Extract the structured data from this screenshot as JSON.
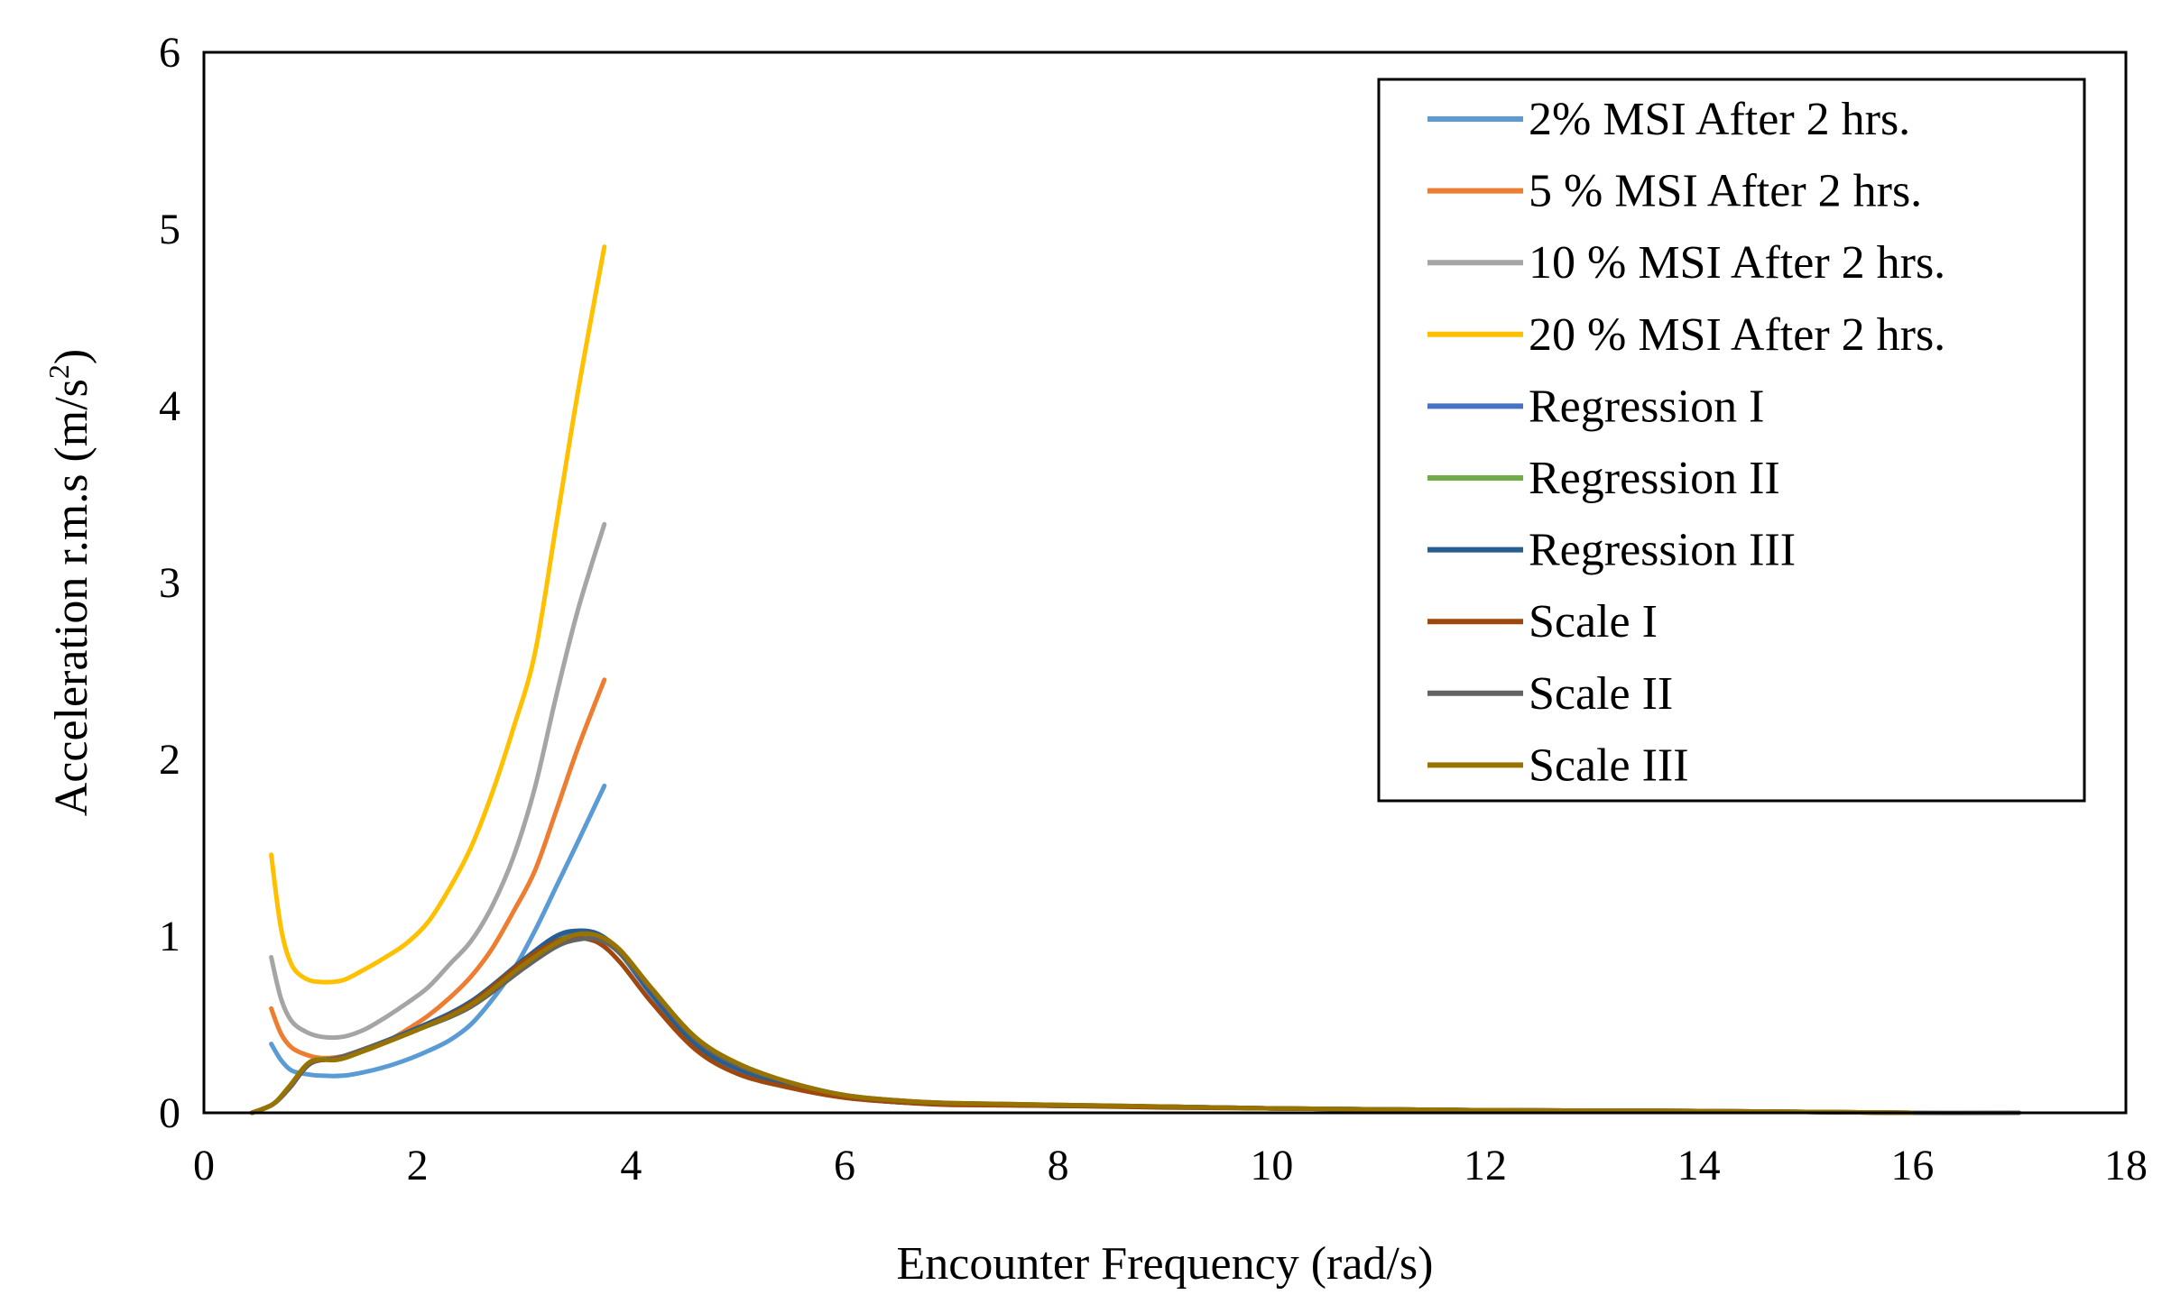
{
  "chart_data": {
    "type": "line",
    "title": "",
    "xlabel": "Encounter Frequency (rad/s)",
    "ylabel": "Acceleration r.m.s (m/s²)",
    "ylabel_main": "Acceleration r.m.s (m/s",
    "ylabel_sup": "2",
    "ylabel_end": ")",
    "xlim": [
      0,
      18
    ],
    "ylim": [
      0,
      6
    ],
    "xticks": [
      0,
      2,
      4,
      6,
      8,
      10,
      12,
      14,
      16,
      18
    ],
    "yticks": [
      0,
      1,
      2,
      3,
      4,
      5,
      6
    ],
    "grid": false,
    "legend_position": "top-right",
    "series": [
      {
        "name": "2% MSI After 2 hrs.",
        "color": "#5B9BD5",
        "x": [
          0.63,
          0.72,
          0.82,
          0.95,
          1.1,
          1.3,
          1.5,
          1.7,
          1.9,
          2.1,
          2.3,
          2.5,
          2.7,
          2.9,
          3.1,
          3.3,
          3.5,
          3.75
        ],
        "y": [
          0.39,
          0.3,
          0.24,
          0.22,
          0.21,
          0.21,
          0.23,
          0.26,
          0.3,
          0.35,
          0.41,
          0.5,
          0.64,
          0.81,
          1.03,
          1.28,
          1.53,
          1.85
        ]
      },
      {
        "name": "5 % MSI After 2 hrs.",
        "color": "#ED7D31",
        "x": [
          0.63,
          0.72,
          0.82,
          0.95,
          1.1,
          1.3,
          1.5,
          1.7,
          1.9,
          2.1,
          2.3,
          2.5,
          2.7,
          2.9,
          3.1,
          3.3,
          3.5,
          3.75
        ],
        "y": [
          0.59,
          0.45,
          0.37,
          0.33,
          0.31,
          0.32,
          0.35,
          0.4,
          0.47,
          0.55,
          0.65,
          0.77,
          0.93,
          1.14,
          1.37,
          1.71,
          2.06,
          2.45
        ]
      },
      {
        "name": "10 % MSI After 2 hrs.",
        "color": "#A5A5A5",
        "x": [
          0.63,
          0.72,
          0.82,
          0.95,
          1.1,
          1.3,
          1.5,
          1.7,
          1.9,
          2.1,
          2.3,
          2.5,
          2.7,
          2.9,
          3.1,
          3.3,
          3.5,
          3.75
        ],
        "y": [
          0.88,
          0.65,
          0.52,
          0.46,
          0.43,
          0.43,
          0.47,
          0.54,
          0.62,
          0.71,
          0.84,
          0.97,
          1.17,
          1.45,
          1.84,
          2.36,
          2.84,
          3.33
        ]
      },
      {
        "name": "20 % MSI After 2 hrs.",
        "color": "#FFC000",
        "x": [
          0.63,
          0.72,
          0.82,
          0.95,
          1.1,
          1.3,
          1.5,
          1.7,
          1.9,
          2.1,
          2.3,
          2.5,
          2.7,
          2.9,
          3.1,
          3.3,
          3.5,
          3.75
        ],
        "y": [
          1.46,
          1.05,
          0.84,
          0.76,
          0.74,
          0.75,
          0.81,
          0.88,
          0.96,
          1.08,
          1.27,
          1.5,
          1.81,
          2.18,
          2.6,
          3.33,
          4.07,
          4.9
        ]
      },
      {
        "name": "Regression I",
        "color": "#4472C4",
        "x": [
          0.45,
          0.65,
          0.8,
          1.0,
          1.25,
          1.5,
          2.0,
          2.5,
          3.0,
          3.3,
          3.5,
          3.7,
          3.9,
          4.2,
          4.6,
          5.0,
          5.5,
          6.0,
          6.5,
          7.0,
          8.0,
          9.0,
          10.0,
          11.0,
          12.0,
          13.0,
          14.0,
          15.0,
          16.0
        ],
        "y": [
          0.0,
          0.05,
          0.14,
          0.28,
          0.31,
          0.36,
          0.48,
          0.62,
          0.86,
          0.99,
          1.02,
          1.0,
          0.9,
          0.66,
          0.38,
          0.24,
          0.15,
          0.09,
          0.06,
          0.05,
          0.04,
          0.035,
          0.025,
          0.02,
          0.015,
          0.012,
          0.01,
          0.005,
          0.0
        ]
      },
      {
        "name": "Regression II",
        "color": "#70AD47",
        "x": [
          0.45,
          0.65,
          0.8,
          1.0,
          1.25,
          1.5,
          2.0,
          2.5,
          3.0,
          3.3,
          3.5,
          3.7,
          3.9,
          4.2,
          4.6,
          5.0,
          5.5,
          6.0,
          6.5,
          7.0,
          8.0,
          9.0,
          10.0,
          11.0,
          12.0,
          13.0,
          14.0,
          15.0,
          16.0
        ],
        "y": [
          0.0,
          0.05,
          0.15,
          0.29,
          0.31,
          0.36,
          0.47,
          0.61,
          0.85,
          0.97,
          1.0,
          0.99,
          0.9,
          0.68,
          0.41,
          0.26,
          0.16,
          0.1,
          0.065,
          0.05,
          0.04,
          0.035,
          0.025,
          0.02,
          0.015,
          0.012,
          0.01,
          0.005,
          0.0
        ]
      },
      {
        "name": "Regression III",
        "color": "#255E91",
        "x": [
          0.45,
          0.65,
          0.8,
          1.0,
          1.25,
          1.5,
          2.0,
          2.5,
          3.0,
          3.3,
          3.5,
          3.7,
          3.9,
          4.2,
          4.6,
          5.0,
          5.5,
          6.0,
          6.5,
          7.0,
          8.0,
          9.0,
          10.0,
          11.0,
          12.0,
          13.0,
          14.0,
          15.0,
          16.0
        ],
        "y": [
          0.0,
          0.05,
          0.14,
          0.28,
          0.31,
          0.36,
          0.48,
          0.63,
          0.87,
          1.0,
          1.03,
          1.01,
          0.91,
          0.67,
          0.39,
          0.25,
          0.15,
          0.09,
          0.06,
          0.05,
          0.04,
          0.035,
          0.025,
          0.02,
          0.015,
          0.012,
          0.01,
          0.005,
          0.0
        ]
      },
      {
        "name": "Scale I",
        "color": "#9E480E",
        "x": [
          0.45,
          0.65,
          0.8,
          1.0,
          1.25,
          1.5,
          2.0,
          2.5,
          3.0,
          3.3,
          3.5,
          3.7,
          3.9,
          4.2,
          4.6,
          5.0,
          5.5,
          6.0,
          6.5,
          7.0,
          8.0,
          9.0,
          10.0,
          11.0,
          12.0,
          13.0,
          14.0,
          15.0,
          16.0
        ],
        "y": [
          0.0,
          0.05,
          0.14,
          0.28,
          0.31,
          0.36,
          0.47,
          0.62,
          0.86,
          0.97,
          0.99,
          0.96,
          0.85,
          0.62,
          0.36,
          0.22,
          0.14,
          0.085,
          0.06,
          0.045,
          0.04,
          0.03,
          0.025,
          0.02,
          0.015,
          0.012,
          0.01,
          0.005,
          0.0
        ]
      },
      {
        "name": "Scale II",
        "color": "#636363",
        "x": [
          0.45,
          0.65,
          0.8,
          1.0,
          1.25,
          1.5,
          2.0,
          2.5,
          3.0,
          3.3,
          3.5,
          3.7,
          3.9,
          4.2,
          4.6,
          5.0,
          5.5,
          6.0,
          6.5,
          7.0,
          8.0,
          9.0,
          10.0,
          11.0,
          12.0,
          13.0,
          14.0,
          15.0,
          16.0,
          17.0
        ],
        "y": [
          0.0,
          0.05,
          0.14,
          0.28,
          0.31,
          0.36,
          0.47,
          0.6,
          0.82,
          0.94,
          0.98,
          0.98,
          0.9,
          0.69,
          0.42,
          0.27,
          0.17,
          0.1,
          0.07,
          0.055,
          0.045,
          0.035,
          0.025,
          0.02,
          0.015,
          0.012,
          0.01,
          0.005,
          0.0,
          0.0
        ]
      },
      {
        "name": "Scale III",
        "color": "#997300",
        "x": [
          0.45,
          0.65,
          0.8,
          1.0,
          1.25,
          1.5,
          2.0,
          2.5,
          3.0,
          3.3,
          3.5,
          3.7,
          3.9,
          4.2,
          4.6,
          5.0,
          5.5,
          6.0,
          6.5,
          7.0,
          8.0,
          9.0,
          10.0,
          11.0,
          12.0,
          13.0,
          14.0,
          15.0,
          16.0
        ],
        "y": [
          0.0,
          0.05,
          0.15,
          0.29,
          0.3,
          0.35,
          0.47,
          0.61,
          0.84,
          0.96,
          1.01,
          1.0,
          0.92,
          0.7,
          0.43,
          0.28,
          0.17,
          0.1,
          0.07,
          0.055,
          0.045,
          0.035,
          0.025,
          0.02,
          0.015,
          0.012,
          0.01,
          0.005,
          0.0
        ]
      }
    ]
  }
}
